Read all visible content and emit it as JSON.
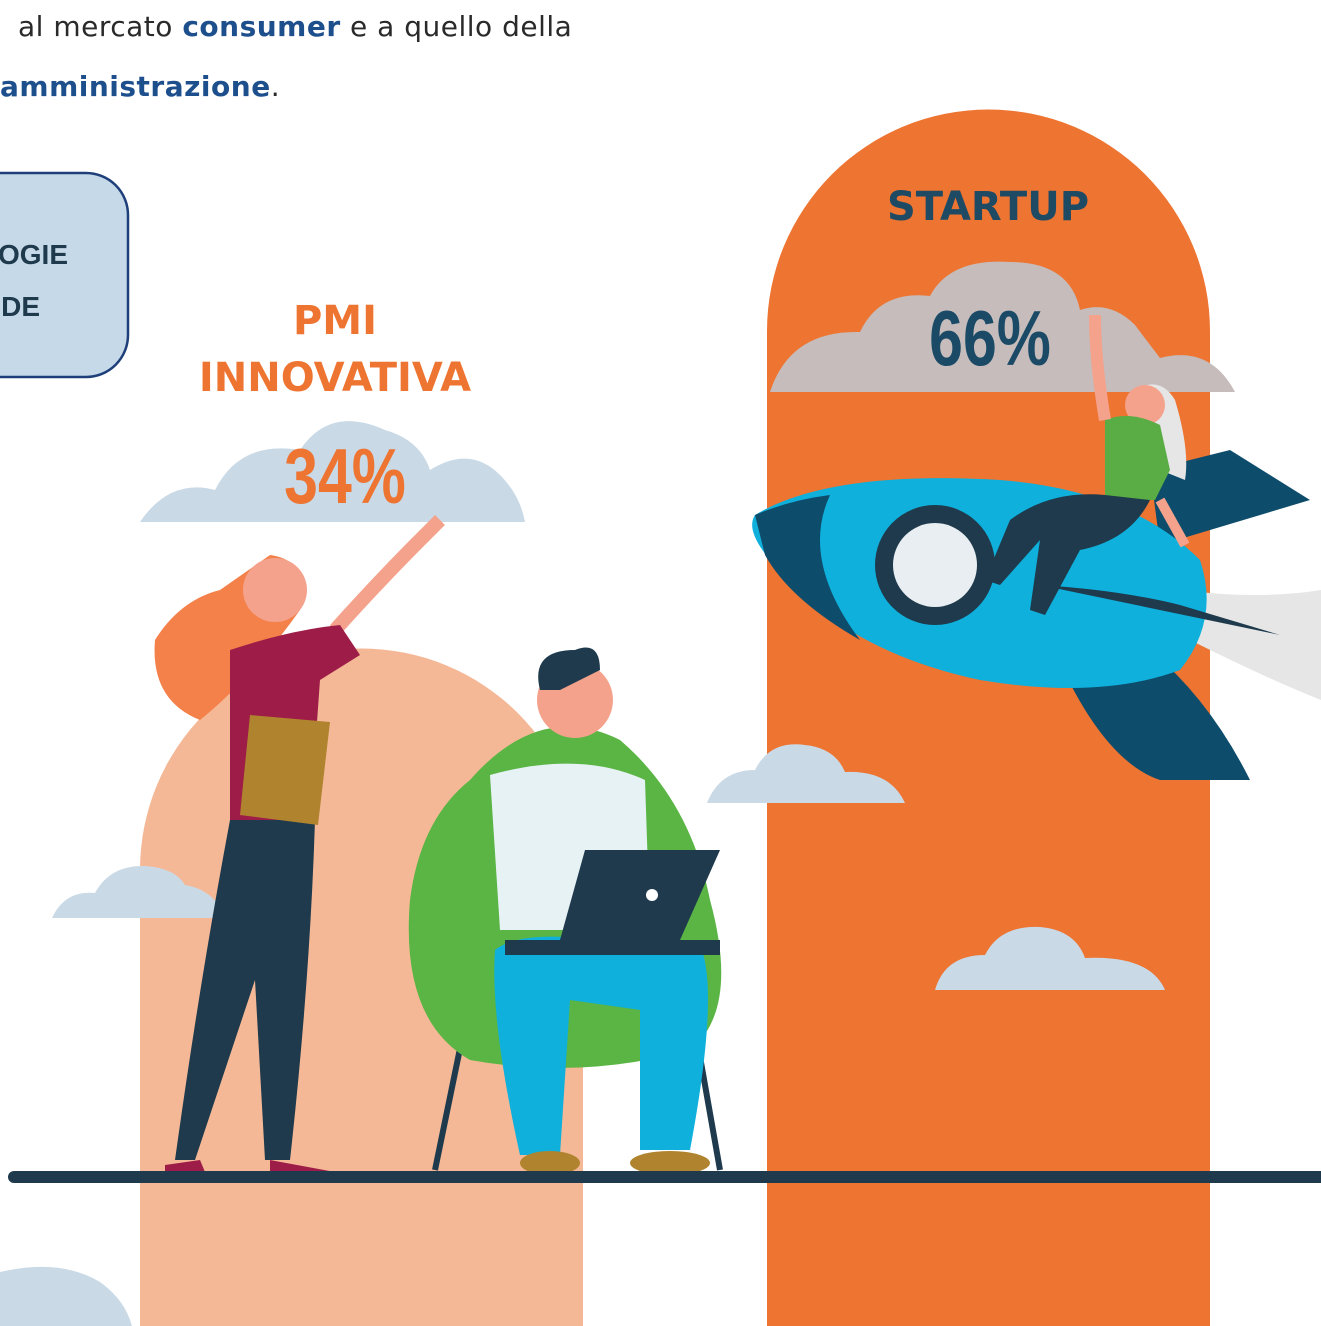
{
  "intro": {
    "line1": [
      "al mercato ",
      "consumer",
      " e a quello della"
    ],
    "line2": [
      "amministrazione",
      "."
    ]
  },
  "box": {
    "lines": [
      "LOGIE",
      "NDE"
    ]
  },
  "columns": [
    {
      "label_lines": [
        "PMI",
        "INNOVATIVA"
      ],
      "value": "34%"
    },
    {
      "label_lines": [
        "STARTUP"
      ],
      "value": "66%"
    }
  ]
}
